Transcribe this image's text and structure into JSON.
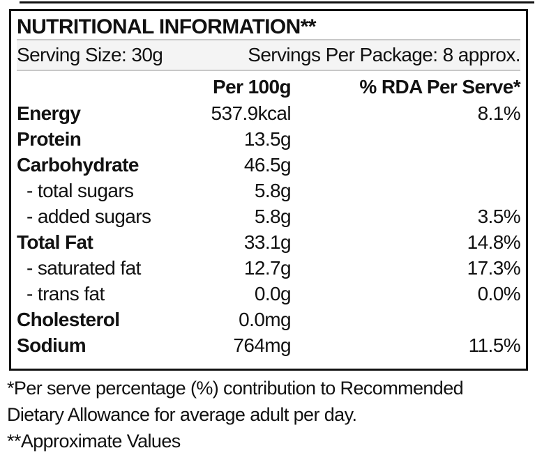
{
  "table": {
    "title": "NUTRITIONAL INFORMATION**",
    "serving_size": "Serving Size: 30g",
    "servings_per_package": "Servings Per Package: 8 approx.",
    "columns": {
      "per_100g": "Per 100g",
      "rda_per_serve": "% RDA Per Serve*"
    },
    "rows": [
      {
        "label": "Energy",
        "per_100g": "537.9kcal",
        "rda": "8.1%"
      },
      {
        "label": "Protein",
        "per_100g": "13.5g",
        "rda": ""
      },
      {
        "label": "Carbohydrate",
        "per_100g": "46.5g",
        "rda": ""
      },
      {
        "label": "- total sugars",
        "per_100g": "5.8g",
        "rda": ""
      },
      {
        "label": "- added sugars",
        "per_100g": "5.8g",
        "rda": "3.5%"
      },
      {
        "label": "Total Fat",
        "per_100g": "33.1g",
        "rda": "14.8%"
      },
      {
        "label": "- saturated fat",
        "per_100g": "12.7g",
        "rda": "17.3%"
      },
      {
        "label": "- trans fat",
        "per_100g": "0.0g",
        "rda": "0.0%"
      },
      {
        "label": "Cholesterol",
        "per_100g": "0.0mg",
        "rda": ""
      },
      {
        "label": "Sodium",
        "per_100g": "764mg",
        "rda": "11.5%"
      }
    ]
  },
  "footnotes": {
    "line1": "*Per serve percentage (%) contribution to Recommended",
    "line2": "Dietary Allowance for average adult per day.",
    "line3": "**Approximate Values"
  },
  "colors": {
    "text": "#111111",
    "border": "#111111",
    "separator": "#c8c8c8",
    "serving_band": "#f4f4f4"
  }
}
